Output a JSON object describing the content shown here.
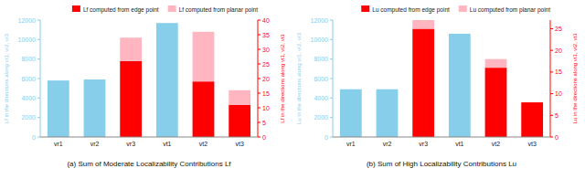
{
  "chart_data": [
    {
      "type": "bar",
      "title": "(a) Sum of Moderate Localizability Contributions Lf",
      "categories": [
        "vr1",
        "vr2",
        "vr3",
        "vt1",
        "vt2",
        "vt3"
      ],
      "ylabel": "Lf in the directions along vr1, vr2, vr3",
      "y2label": "Lf in the directions along vt1, vt2, vt3",
      "ylim": [
        0,
        12000
      ],
      "yticks": [
        0,
        2000,
        4000,
        6000,
        8000,
        10000,
        12000
      ],
      "y2lim": [
        0,
        40
      ],
      "y2ticks": [
        0,
        5,
        10,
        15,
        20,
        25,
        30,
        35,
        40
      ],
      "legend": "upper right",
      "grid": false,
      "stacked": true,
      "series": [
        {
          "color": "#87CEEB",
          "values": [
            5800,
            5900,
            0,
            11700,
            0,
            0
          ]
        },
        {
          "name": "Lf computed from edge point",
          "color": "#FF0000",
          "axis": "y2",
          "values": [
            0,
            0,
            26,
            0,
            19,
            11
          ]
        },
        {
          "name": "Lf computed from planar point",
          "color": "#FFB6C1",
          "axis": "y2",
          "values": [
            0,
            0,
            8,
            0,
            17,
            5
          ]
        }
      ]
    },
    {
      "type": "bar",
      "title": "(b) Sum of High Localizability Contributions Lu",
      "categories": [
        "vr1",
        "vr2",
        "vr3",
        "vt1",
        "vt2",
        "vt3"
      ],
      "ylabel": "Lu in the directions along vr1, vr2, vr3",
      "y2label": "Lu in the directions along vt1, vt2, vt3",
      "ylim": [
        0,
        12000
      ],
      "yticks": [
        0,
        2000,
        4000,
        6000,
        8000,
        10000,
        12000
      ],
      "y2lim": [
        0,
        27
      ],
      "y2ticks": [
        0,
        5,
        10,
        15,
        20,
        25
      ],
      "legend": "upper right",
      "grid": false,
      "stacked": true,
      "series": [
        {
          "color": "#87CEEB",
          "values": [
            4900,
            4900,
            0,
            10600,
            0,
            0
          ]
        },
        {
          "name": "Lu computed from edge point",
          "color": "#FF0000",
          "axis": "y2",
          "values": [
            0,
            0,
            25,
            0,
            16,
            8
          ]
        },
        {
          "name": "Lu computed from planar point",
          "color": "#FFB6C1",
          "axis": "y2",
          "values": [
            0,
            0,
            2,
            0,
            2,
            0
          ]
        }
      ]
    }
  ]
}
